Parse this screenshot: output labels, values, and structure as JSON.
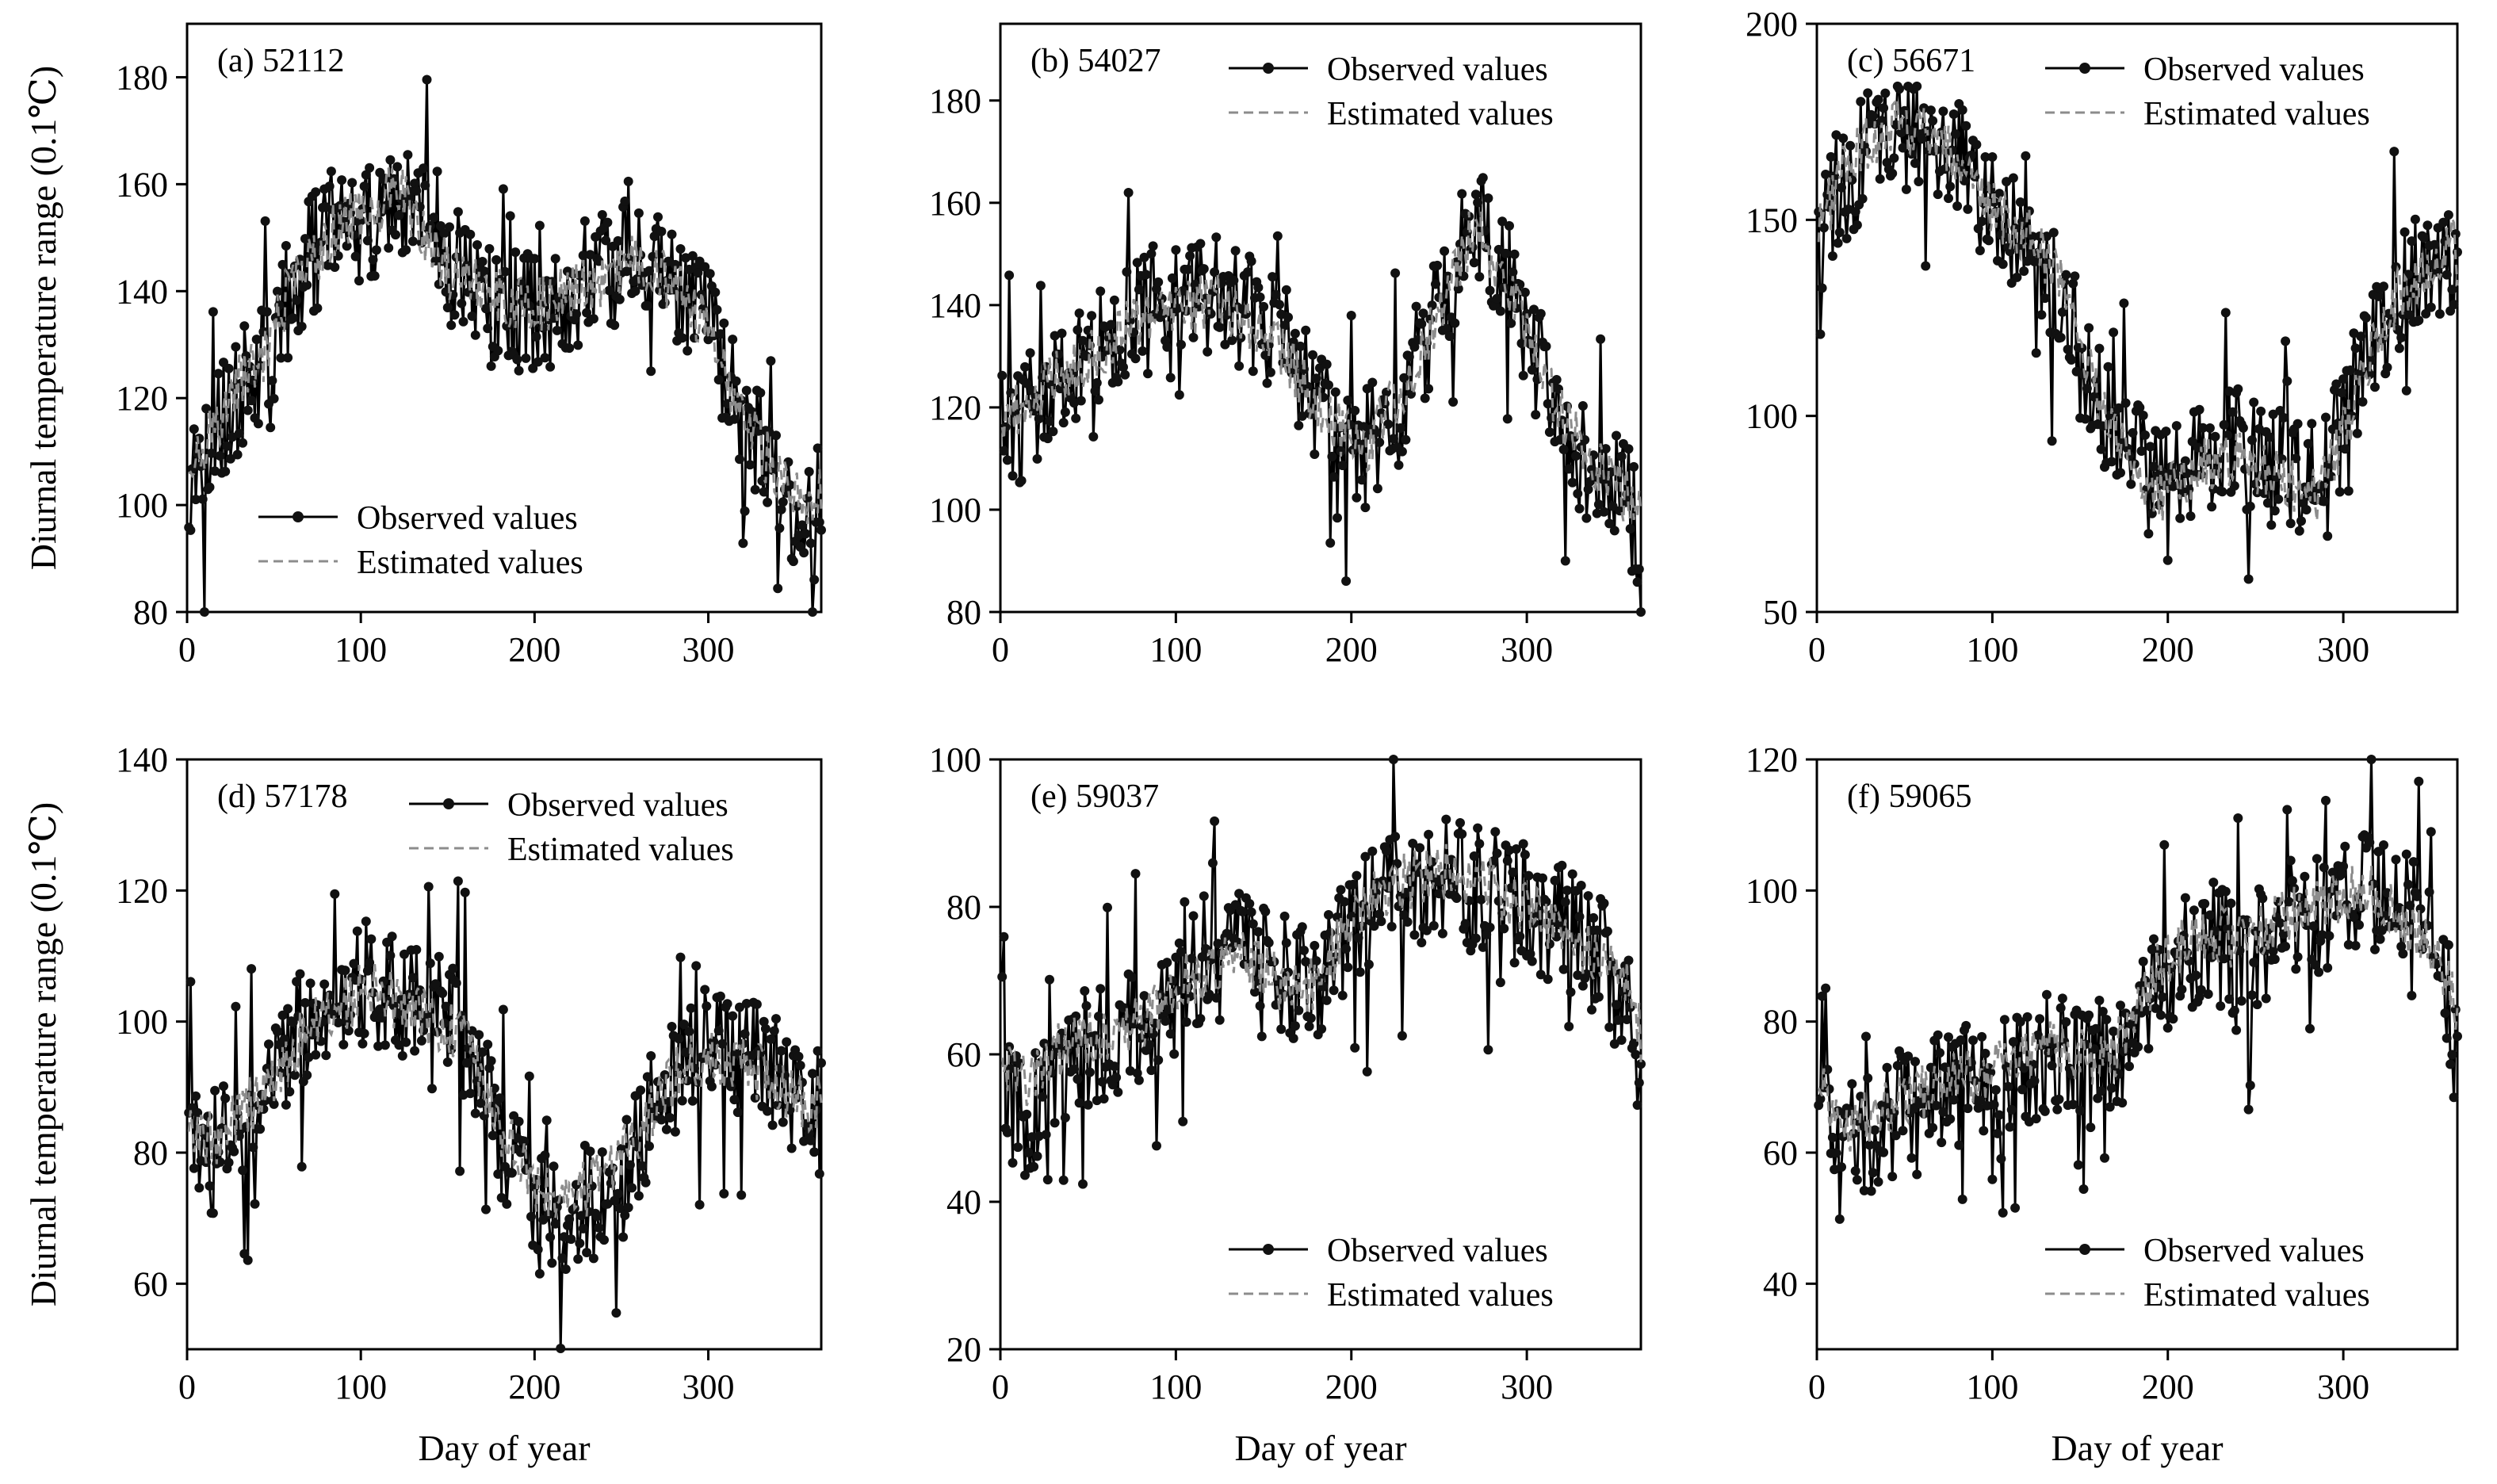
{
  "chart_data": [
    {
      "type": "line",
      "panel_label": "(a) 52112",
      "xlabel": "",
      "ylabel": "Diurnal temperature range  (0.1℃)",
      "xlim": [
        0,
        365
      ],
      "ylim": [
        80,
        190
      ],
      "xticks": [
        0,
        100,
        200,
        300
      ],
      "yticks": [
        80,
        100,
        120,
        140,
        160,
        180
      ],
      "legend": {
        "position": "bottom-left",
        "entries": [
          "Observed values",
          "Estimated values"
        ]
      },
      "series": [
        {
          "name": "Observed values",
          "x": [
            0,
            15,
            30,
            45,
            60,
            75,
            90,
            105,
            120,
            135,
            150,
            165,
            180,
            195,
            210,
            225,
            240,
            255,
            270,
            285,
            300,
            315,
            330,
            345,
            360,
            365
          ],
          "values": [
            105,
            113,
            121,
            126,
            140,
            148,
            155,
            152,
            158,
            152,
            145,
            140,
            138,
            136,
            137,
            140,
            143,
            146,
            145,
            140,
            134,
            120,
            110,
            102,
            95,
            104
          ]
        },
        {
          "name": "Estimated values",
          "x": [
            0,
            15,
            30,
            45,
            60,
            75,
            90,
            105,
            120,
            135,
            150,
            165,
            180,
            195,
            210,
            225,
            240,
            255,
            270,
            285,
            300,
            315,
            330,
            345,
            360,
            365
          ],
          "values": [
            108,
            114,
            123,
            128,
            141,
            147,
            154,
            153,
            160,
            151,
            144,
            141,
            139,
            137,
            138,
            141,
            142,
            145,
            144,
            139,
            133,
            121,
            111,
            103,
            97,
            103
          ]
        }
      ]
    },
    {
      "type": "line",
      "panel_label": "(b) 54027",
      "xlabel": "",
      "ylabel": "",
      "xlim": [
        0,
        365
      ],
      "ylim": [
        80,
        195
      ],
      "xticks": [
        0,
        100,
        200,
        300
      ],
      "yticks": [
        80,
        100,
        120,
        140,
        160,
        180
      ],
      "legend": {
        "position": "top-right",
        "entries": [
          "Observed values",
          "Estimated values"
        ]
      },
      "series": [
        {
          "name": "Observed values",
          "x": [
            0,
            15,
            30,
            45,
            60,
            75,
            90,
            105,
            120,
            135,
            150,
            165,
            180,
            195,
            210,
            225,
            240,
            255,
            270,
            285,
            300,
            315,
            330,
            345,
            360,
            365
          ],
          "values": [
            115,
            118,
            125,
            128,
            133,
            138,
            140,
            140,
            142,
            140,
            136,
            130,
            122,
            114,
            112,
            120,
            132,
            145,
            158,
            148,
            135,
            122,
            112,
            105,
            100,
            95
          ]
        },
        {
          "name": "Estimated values",
          "x": [
            0,
            15,
            30,
            45,
            60,
            75,
            90,
            105,
            120,
            135,
            150,
            165,
            180,
            195,
            210,
            225,
            240,
            255,
            270,
            285,
            300,
            315,
            330,
            345,
            360,
            365
          ],
          "values": [
            118,
            120,
            126,
            129,
            132,
            137,
            139,
            139,
            141,
            139,
            135,
            129,
            121,
            115,
            113,
            121,
            131,
            144,
            155,
            147,
            134,
            121,
            113,
            106,
            101,
            98
          ]
        }
      ]
    },
    {
      "type": "line",
      "panel_label": "(c) 56671",
      "xlabel": "",
      "ylabel": "",
      "xlim": [
        0,
        365
      ],
      "ylim": [
        50,
        200
      ],
      "xticks": [
        0,
        100,
        200,
        300
      ],
      "yticks": [
        50,
        100,
        150,
        200
      ],
      "legend": {
        "position": "top-right",
        "entries": [
          "Observed values",
          "Estimated values"
        ]
      },
      "series": [
        {
          "name": "Observed values",
          "x": [
            0,
            15,
            30,
            45,
            60,
            75,
            90,
            105,
            120,
            135,
            150,
            165,
            180,
            195,
            210,
            225,
            240,
            255,
            270,
            285,
            300,
            315,
            330,
            345,
            360,
            365
          ],
          "values": [
            140,
            160,
            168,
            172,
            170,
            168,
            158,
            150,
            145,
            135,
            118,
            100,
            90,
            82,
            85,
            90,
            92,
            88,
            85,
            82,
            98,
            118,
            132,
            138,
            142,
            135
          ]
        },
        {
          "name": "Estimated values",
          "x": [
            0,
            15,
            30,
            45,
            60,
            75,
            90,
            105,
            120,
            135,
            150,
            165,
            180,
            195,
            210,
            225,
            240,
            255,
            270,
            285,
            300,
            315,
            330,
            345,
            360,
            365
          ],
          "values": [
            145,
            163,
            170,
            175,
            172,
            168,
            156,
            151,
            146,
            138,
            120,
            98,
            86,
            80,
            84,
            88,
            90,
            86,
            82,
            80,
            95,
            115,
            130,
            137,
            145,
            140
          ]
        }
      ]
    },
    {
      "type": "line",
      "panel_label": "(d) 57178",
      "xlabel": "Day of year",
      "ylabel": "Diurnal temperature range  (0.1℃)",
      "xlim": [
        0,
        365
      ],
      "ylim": [
        50,
        140
      ],
      "xticks": [
        0,
        100,
        200,
        300
      ],
      "yticks": [
        60,
        80,
        100,
        120,
        140
      ],
      "legend": {
        "position": "top-right",
        "entries": [
          "Observed values",
          "Estimated values"
        ]
      },
      "series": [
        {
          "name": "Observed values",
          "x": [
            0,
            15,
            30,
            45,
            60,
            75,
            90,
            105,
            120,
            135,
            150,
            165,
            180,
            195,
            210,
            225,
            240,
            255,
            270,
            285,
            300,
            315,
            330,
            345,
            360,
            365
          ],
          "values": [
            82,
            80,
            85,
            88,
            96,
            102,
            104,
            106,
            104,
            102,
            100,
            96,
            82,
            74,
            70,
            72,
            74,
            80,
            88,
            94,
            96,
            95,
            93,
            90,
            86,
            88
          ]
        },
        {
          "name": "Estimated values",
          "x": [
            0,
            15,
            30,
            45,
            60,
            75,
            90,
            105,
            120,
            135,
            150,
            165,
            180,
            195,
            210,
            225,
            240,
            255,
            270,
            285,
            300,
            315,
            330,
            345,
            360,
            365
          ],
          "values": [
            84,
            82,
            86,
            89,
            95,
            101,
            103,
            105,
            103,
            101,
            99,
            95,
            84,
            77,
            73,
            74,
            76,
            81,
            87,
            93,
            95,
            94,
            92,
            89,
            87,
            88
          ]
        }
      ]
    },
    {
      "type": "line",
      "panel_label": "(e) 59037",
      "xlabel": "Day of year",
      "ylabel": "",
      "xlim": [
        0,
        365
      ],
      "ylim": [
        20,
        100
      ],
      "xticks": [
        0,
        100,
        200,
        300
      ],
      "yticks": [
        20,
        40,
        60,
        80,
        100
      ],
      "legend": {
        "position": "bottom-right",
        "entries": [
          "Observed values",
          "Estimated values"
        ]
      },
      "series": [
        {
          "name": "Observed values",
          "x": [
            0,
            15,
            30,
            45,
            60,
            75,
            90,
            105,
            120,
            135,
            150,
            165,
            180,
            195,
            210,
            225,
            240,
            255,
            270,
            285,
            300,
            315,
            330,
            345,
            360,
            365
          ],
          "values": [
            55,
            50,
            58,
            60,
            62,
            63,
            65,
            70,
            72,
            74,
            72,
            70,
            68,
            75,
            80,
            82,
            83,
            84,
            83,
            82,
            80,
            78,
            76,
            72,
            65,
            52
          ]
        },
        {
          "name": "Estimated values",
          "x": [
            0,
            15,
            30,
            45,
            60,
            75,
            90,
            105,
            120,
            135,
            150,
            165,
            180,
            195,
            210,
            225,
            240,
            255,
            270,
            285,
            300,
            315,
            330,
            345,
            360,
            365
          ],
          "values": [
            60,
            56,
            60,
            62,
            63,
            64,
            66,
            70,
            72,
            73,
            71,
            69,
            70,
            76,
            81,
            83,
            84,
            85,
            84,
            82,
            80,
            77,
            75,
            72,
            68,
            62
          ]
        }
      ]
    },
    {
      "type": "line",
      "panel_label": "(f) 59065",
      "xlabel": "Day of year",
      "ylabel": "",
      "xlim": [
        0,
        365
      ],
      "ylim": [
        30,
        120
      ],
      "xticks": [
        0,
        100,
        200,
        300
      ],
      "yticks": [
        40,
        60,
        80,
        100,
        120
      ],
      "legend": {
        "position": "bottom-right",
        "entries": [
          "Observed values",
          "Estimated values"
        ]
      },
      "series": [
        {
          "name": "Observed values",
          "x": [
            0,
            15,
            30,
            45,
            60,
            75,
            90,
            105,
            120,
            135,
            150,
            165,
            180,
            195,
            210,
            225,
            240,
            255,
            270,
            285,
            300,
            315,
            330,
            345,
            360,
            365
          ],
          "values": [
            68,
            60,
            64,
            66,
            68,
            70,
            70,
            72,
            74,
            75,
            74,
            72,
            78,
            86,
            90,
            92,
            90,
            92,
            94,
            96,
            98,
            100,
            98,
            94,
            85,
            72
          ]
        },
        {
          "name": "Estimated values",
          "x": [
            0,
            15,
            30,
            45,
            60,
            75,
            90,
            105,
            120,
            135,
            150,
            165,
            180,
            195,
            210,
            225,
            240,
            255,
            270,
            285,
            300,
            315,
            330,
            345,
            360,
            365
          ],
          "values": [
            70,
            64,
            66,
            67,
            69,
            71,
            71,
            73,
            75,
            76,
            75,
            74,
            80,
            88,
            92,
            94,
            92,
            94,
            96,
            97,
            99,
            100,
            97,
            93,
            87,
            78
          ]
        }
      ]
    }
  ]
}
